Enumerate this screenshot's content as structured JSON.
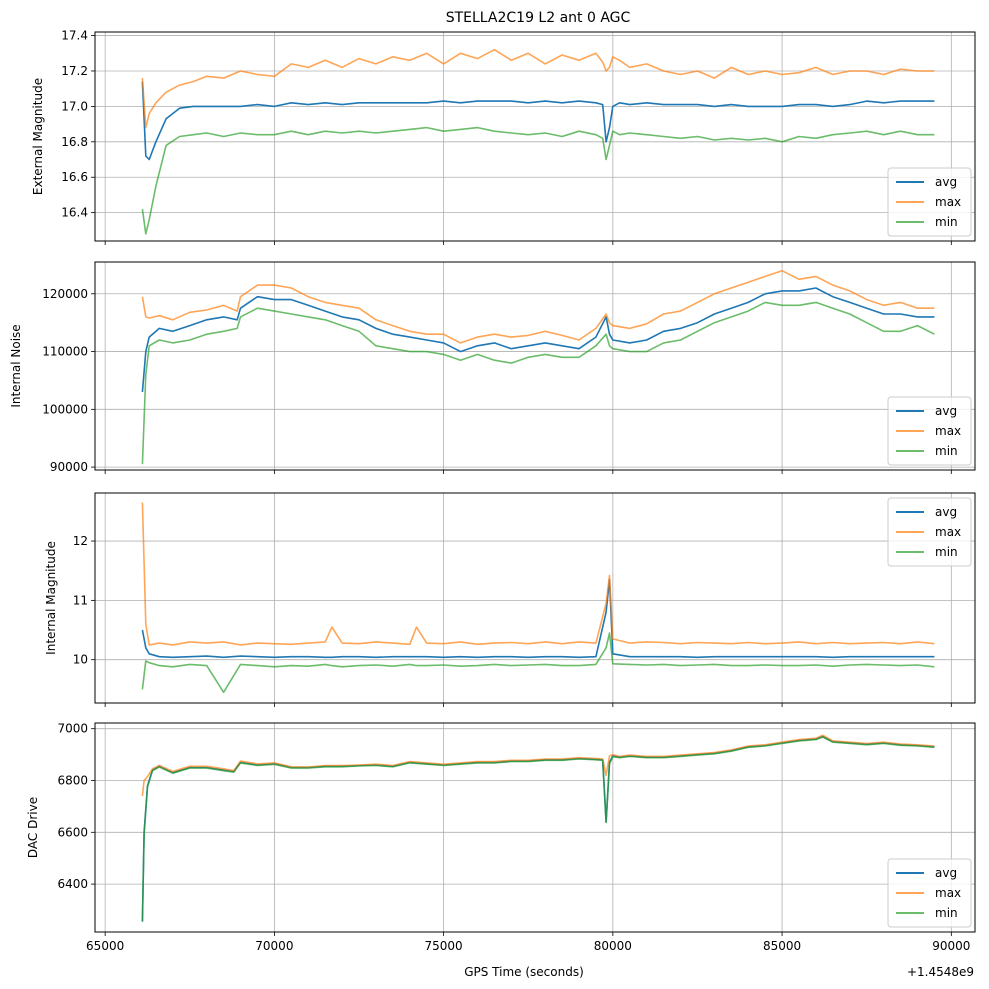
{
  "figure": {
    "title": "STELLA2C19 L2 ant 0 AGC",
    "xlabel": "GPS Time (seconds)",
    "x_offset_label": "+1.4548e9"
  },
  "colors": {
    "avg": "#1f77b4",
    "max": "#ff7f0e",
    "min": "#2ca02c",
    "grid": "#b0b0b0"
  },
  "chart_data": [
    {
      "type": "line",
      "title": "STELLA2C19 L2 ant 0 AGC",
      "xlabel": "",
      "ylabel": "External Magnitude",
      "xlim": [
        64700,
        90700
      ],
      "ylim": [
        16.24,
        17.42
      ],
      "xticks": [
        65000,
        70000,
        75000,
        80000,
        85000,
        90000
      ],
      "xtick_labels": [],
      "yticks": [
        16.4,
        16.6,
        16.8,
        17.0,
        17.2,
        17.4
      ],
      "ytick_labels": [
        "16.4",
        "16.6",
        "16.8",
        "17.0",
        "17.2",
        "17.4"
      ],
      "grid": true,
      "legend": "lower-right",
      "x": [
        66100,
        66200,
        66300,
        66500,
        66800,
        67200,
        67600,
        68000,
        68500,
        69000,
        69500,
        70000,
        70500,
        71000,
        71500,
        72000,
        72500,
        73000,
        73500,
        74000,
        74500,
        75000,
        75500,
        76000,
        76500,
        77000,
        77500,
        78000,
        78500,
        79000,
        79500,
        79700,
        79800,
        79900,
        80000,
        80200,
        80500,
        81000,
        81500,
        82000,
        82500,
        83000,
        83500,
        84000,
        84500,
        85000,
        85500,
        86000,
        86500,
        87000,
        87500,
        88000,
        88500,
        89000,
        89500
      ],
      "series": [
        {
          "name": "avg",
          "values": [
            17.14,
            16.72,
            16.7,
            16.8,
            16.93,
            16.99,
            17.0,
            17.0,
            17.0,
            17.0,
            17.01,
            17.0,
            17.02,
            17.01,
            17.02,
            17.01,
            17.02,
            17.02,
            17.02,
            17.02,
            17.02,
            17.03,
            17.02,
            17.03,
            17.03,
            17.03,
            17.02,
            17.03,
            17.02,
            17.03,
            17.02,
            17.01,
            16.8,
            16.88,
            17.0,
            17.02,
            17.01,
            17.02,
            17.01,
            17.01,
            17.01,
            17.0,
            17.01,
            17.0,
            17.0,
            17.0,
            17.01,
            17.01,
            17.0,
            17.01,
            17.03,
            17.02,
            17.03,
            17.03,
            17.03
          ]
        },
        {
          "name": "max",
          "values": [
            17.16,
            16.88,
            16.96,
            17.02,
            17.08,
            17.12,
            17.14,
            17.17,
            17.16,
            17.2,
            17.18,
            17.17,
            17.24,
            17.22,
            17.26,
            17.22,
            17.27,
            17.24,
            17.28,
            17.26,
            17.3,
            17.24,
            17.3,
            17.27,
            17.32,
            17.26,
            17.3,
            17.24,
            17.29,
            17.26,
            17.3,
            17.25,
            17.2,
            17.22,
            17.28,
            17.26,
            17.22,
            17.24,
            17.2,
            17.18,
            17.2,
            17.16,
            17.22,
            17.18,
            17.2,
            17.18,
            17.19,
            17.22,
            17.18,
            17.2,
            17.2,
            17.18,
            17.21,
            17.2,
            17.2
          ]
        },
        {
          "name": "min",
          "values": [
            16.42,
            16.28,
            16.36,
            16.55,
            16.78,
            16.83,
            16.84,
            16.85,
            16.83,
            16.85,
            16.84,
            16.84,
            16.86,
            16.84,
            16.86,
            16.85,
            16.86,
            16.85,
            16.86,
            16.87,
            16.88,
            16.86,
            16.87,
            16.88,
            16.86,
            16.85,
            16.84,
            16.85,
            16.83,
            16.86,
            16.84,
            16.82,
            16.7,
            16.78,
            16.86,
            16.84,
            16.85,
            16.84,
            16.83,
            16.82,
            16.83,
            16.81,
            16.82,
            16.81,
            16.82,
            16.8,
            16.83,
            16.82,
            16.84,
            16.85,
            16.86,
            16.84,
            16.86,
            16.84,
            16.84
          ]
        }
      ]
    },
    {
      "type": "line",
      "xlabel": "",
      "ylabel": "Internal Noise",
      "xlim": [
        64700,
        90700
      ],
      "ylim": [
        89500,
        125500
      ],
      "xticks": [
        65000,
        70000,
        75000,
        80000,
        85000,
        90000
      ],
      "xtick_labels": [],
      "yticks": [
        90000,
        100000,
        110000,
        120000
      ],
      "ytick_labels": [
        "90000",
        "100000",
        "110000",
        "120000"
      ],
      "grid": true,
      "legend": "lower-right",
      "x": [
        66100,
        66200,
        66300,
        66600,
        67000,
        67500,
        68000,
        68500,
        68900,
        69000,
        69500,
        70000,
        70500,
        71000,
        71500,
        72000,
        72500,
        73000,
        73500,
        74000,
        74500,
        75000,
        75500,
        76000,
        76500,
        77000,
        77500,
        78000,
        78500,
        79000,
        79500,
        79800,
        79900,
        80000,
        80500,
        81000,
        81500,
        82000,
        82500,
        83000,
        83500,
        84000,
        84500,
        85000,
        85500,
        86000,
        86500,
        87000,
        87500,
        88000,
        88500,
        89000,
        89500
      ],
      "series": [
        {
          "name": "avg",
          "values": [
            103000,
            110000,
            112500,
            114000,
            113500,
            114500,
            115500,
            116000,
            115500,
            117500,
            119500,
            119000,
            119000,
            118000,
            117000,
            116000,
            115500,
            114000,
            113000,
            112500,
            112000,
            111500,
            110000,
            111000,
            111500,
            110500,
            111000,
            111500,
            111000,
            110500,
            112500,
            116000,
            113000,
            112000,
            111500,
            112000,
            113500,
            114000,
            115000,
            116500,
            117500,
            118500,
            120000,
            120500,
            120500,
            121000,
            119500,
            118500,
            117500,
            116500,
            116500,
            116000,
            116000
          ]
        },
        {
          "name": "max",
          "values": [
            119500,
            116000,
            115800,
            116200,
            115500,
            116800,
            117200,
            118000,
            117000,
            119500,
            121500,
            121500,
            121000,
            119500,
            118500,
            118000,
            117500,
            115500,
            114500,
            113500,
            113000,
            113000,
            111500,
            112500,
            113000,
            112500,
            112800,
            113500,
            112800,
            112000,
            114000,
            116500,
            115000,
            114500,
            114000,
            114800,
            116500,
            117000,
            118500,
            120000,
            121000,
            122000,
            123000,
            124000,
            122500,
            123000,
            121500,
            120500,
            119000,
            118000,
            118500,
            117500,
            117500
          ]
        },
        {
          "name": "min",
          "values": [
            90500,
            106000,
            111000,
            112000,
            111500,
            112000,
            113000,
            113500,
            114000,
            116000,
            117500,
            117000,
            116500,
            116000,
            115500,
            114500,
            113500,
            111000,
            110500,
            110000,
            110000,
            109500,
            108500,
            109500,
            108500,
            108000,
            109000,
            109500,
            109000,
            109000,
            111000,
            113000,
            111000,
            110500,
            110000,
            110000,
            111500,
            112000,
            113500,
            115000,
            116000,
            117000,
            118500,
            118000,
            118000,
            118500,
            117500,
            116500,
            115000,
            113500,
            113500,
            114500,
            113000
          ]
        }
      ]
    },
    {
      "type": "line",
      "xlabel": "",
      "ylabel": "Internal Magnitude",
      "xlim": [
        64700,
        90700
      ],
      "ylim": [
        9.27,
        12.81
      ],
      "xticks": [
        65000,
        70000,
        75000,
        80000,
        85000,
        90000
      ],
      "xtick_labels": [],
      "yticks": [
        10,
        11,
        12
      ],
      "ytick_labels": [
        "10",
        "11",
        "12"
      ],
      "grid": true,
      "legend": "upper-right",
      "x": [
        66100,
        66200,
        66300,
        66600,
        67000,
        67500,
        68000,
        68500,
        69000,
        69500,
        70000,
        70500,
        71000,
        71500,
        71700,
        72000,
        72500,
        73000,
        73500,
        74000,
        74200,
        74500,
        75000,
        75500,
        76000,
        76500,
        77000,
        77500,
        78000,
        78500,
        79000,
        79500,
        79800,
        79900,
        80000,
        80500,
        81000,
        81500,
        82000,
        82500,
        83000,
        83500,
        84000,
        84500,
        85000,
        85500,
        86000,
        86500,
        87000,
        87500,
        88000,
        88500,
        89000,
        89500
      ],
      "series": [
        {
          "name": "avg",
          "values": [
            10.5,
            10.2,
            10.1,
            10.05,
            10.04,
            10.05,
            10.06,
            10.04,
            10.06,
            10.05,
            10.04,
            10.05,
            10.05,
            10.04,
            10.04,
            10.05,
            10.05,
            10.04,
            10.05,
            10.05,
            10.05,
            10.05,
            10.04,
            10.05,
            10.04,
            10.05,
            10.05,
            10.04,
            10.05,
            10.05,
            10.04,
            10.05,
            10.8,
            11.35,
            10.1,
            10.05,
            10.05,
            10.05,
            10.05,
            10.04,
            10.05,
            10.05,
            10.05,
            10.05,
            10.05,
            10.05,
            10.05,
            10.04,
            10.05,
            10.05,
            10.05,
            10.05,
            10.05,
            10.05
          ]
        },
        {
          "name": "max",
          "values": [
            12.65,
            10.6,
            10.25,
            10.28,
            10.25,
            10.3,
            10.28,
            10.3,
            10.25,
            10.28,
            10.27,
            10.26,
            10.28,
            10.3,
            10.55,
            10.28,
            10.27,
            10.3,
            10.28,
            10.26,
            10.55,
            10.28,
            10.27,
            10.3,
            10.26,
            10.28,
            10.29,
            10.27,
            10.3,
            10.27,
            10.3,
            10.28,
            10.95,
            11.42,
            10.35,
            10.28,
            10.3,
            10.29,
            10.27,
            10.29,
            10.28,
            10.27,
            10.29,
            10.27,
            10.28,
            10.3,
            10.27,
            10.29,
            10.27,
            10.28,
            10.29,
            10.27,
            10.3,
            10.27
          ]
        },
        {
          "name": "min",
          "values": [
            9.5,
            9.98,
            9.95,
            9.9,
            9.88,
            9.92,
            9.9,
            9.45,
            9.92,
            9.9,
            9.88,
            9.9,
            9.89,
            9.92,
            9.9,
            9.88,
            9.9,
            9.91,
            9.89,
            9.92,
            9.9,
            9.9,
            9.91,
            9.89,
            9.9,
            9.92,
            9.9,
            9.91,
            9.92,
            9.9,
            9.9,
            9.92,
            10.2,
            10.45,
            9.93,
            9.92,
            9.91,
            9.92,
            9.9,
            9.91,
            9.92,
            9.9,
            9.9,
            9.91,
            9.9,
            9.9,
            9.91,
            9.89,
            9.91,
            9.92,
            9.91,
            9.9,
            9.91,
            9.88
          ]
        }
      ]
    },
    {
      "type": "line",
      "xlabel": "GPS Time (seconds)",
      "ylabel": "DAC Drive",
      "xlim": [
        64700,
        90700
      ],
      "ylim": [
        6215,
        7022
      ],
      "xticks": [
        65000,
        70000,
        75000,
        80000,
        85000,
        90000
      ],
      "xtick_labels": [
        "65000",
        "70000",
        "75000",
        "80000",
        "85000",
        "90000"
      ],
      "x_offset_label": "+1.4548e9",
      "yticks": [
        6400,
        6600,
        6800,
        7000
      ],
      "ytick_labels": [
        "6400",
        "6600",
        "6800",
        "7000"
      ],
      "grid": true,
      "legend": "lower-right",
      "x": [
        66100,
        66150,
        66250,
        66400,
        66600,
        67000,
        67500,
        68000,
        68500,
        68800,
        69000,
        69500,
        70000,
        70500,
        71000,
        71500,
        72000,
        72500,
        73000,
        73500,
        74000,
        74500,
        75000,
        75500,
        76000,
        76500,
        77000,
        77500,
        78000,
        78500,
        79000,
        79500,
        79700,
        79800,
        79900,
        80000,
        80200,
        80500,
        81000,
        81500,
        82000,
        82500,
        83000,
        83500,
        84000,
        84500,
        85000,
        85500,
        86000,
        86200,
        86500,
        87000,
        87500,
        88000,
        88500,
        89000,
        89500
      ],
      "series": [
        {
          "name": "avg",
          "values": [
            6255,
            6600,
            6780,
            6840,
            6855,
            6830,
            6850,
            6850,
            6840,
            6835,
            6870,
            6860,
            6865,
            6850,
            6850,
            6855,
            6855,
            6858,
            6860,
            6855,
            6870,
            6865,
            6860,
            6865,
            6870,
            6870,
            6875,
            6875,
            6880,
            6880,
            6885,
            6882,
            6880,
            6640,
            6870,
            6895,
            6890,
            6895,
            6890,
            6890,
            6895,
            6900,
            6905,
            6915,
            6930,
            6935,
            6945,
            6955,
            6960,
            6970,
            6950,
            6945,
            6940,
            6945,
            6938,
            6935,
            6930
          ]
        },
        {
          "name": "max",
          "values": [
            6740,
            6800,
            6815,
            6845,
            6858,
            6835,
            6855,
            6855,
            6845,
            6838,
            6875,
            6864,
            6868,
            6853,
            6852,
            6858,
            6858,
            6860,
            6863,
            6858,
            6873,
            6868,
            6863,
            6868,
            6873,
            6873,
            6878,
            6878,
            6883,
            6883,
            6888,
            6885,
            6883,
            6820,
            6895,
            6900,
            6893,
            6898,
            6893,
            6893,
            6898,
            6903,
            6908,
            6918,
            6933,
            6938,
            6948,
            6958,
            6963,
            6975,
            6953,
            6948,
            6943,
            6948,
            6941,
            6938,
            6933
          ]
        },
        {
          "name": "min",
          "values": [
            6255,
            6590,
            6775,
            6838,
            6852,
            6828,
            6848,
            6848,
            6838,
            6832,
            6868,
            6858,
            6862,
            6848,
            6848,
            6853,
            6853,
            6856,
            6858,
            6853,
            6868,
            6863,
            6858,
            6863,
            6868,
            6868,
            6873,
            6873,
            6878,
            6878,
            6883,
            6880,
            6878,
            6638,
            6865,
            6892,
            6888,
            6893,
            6888,
            6888,
            6893,
            6898,
            6903,
            6913,
            6928,
            6933,
            6943,
            6953,
            6958,
            6968,
            6948,
            6943,
            6938,
            6943,
            6936,
            6933,
            6928
          ]
        }
      ]
    }
  ],
  "legend_labels": [
    "avg",
    "max",
    "min"
  ]
}
